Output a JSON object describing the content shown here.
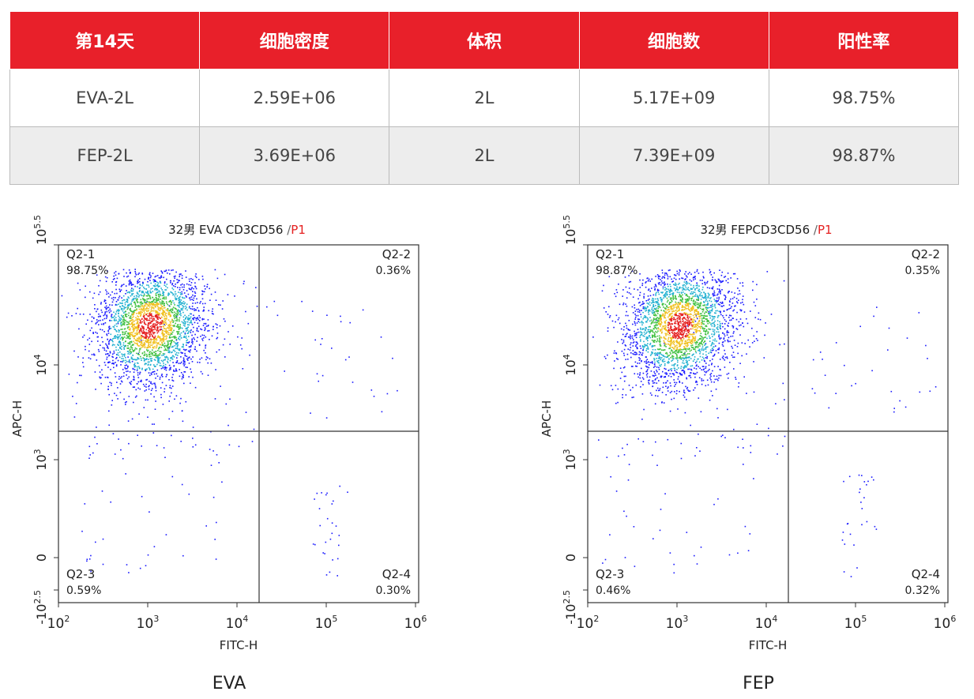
{
  "table": {
    "headers": [
      "第14天",
      "细胞密度",
      "体积",
      "细胞数",
      "阳性率"
    ],
    "rows": [
      [
        "EVA-2L",
        "2.59E+06",
        "2L",
        "5.17E+09",
        "98.75%"
      ],
      [
        "FEP-2L",
        "3.69E+06",
        "2L",
        "7.39E+09",
        "98.87%"
      ]
    ]
  },
  "plots": [
    {
      "title": "32男 EVA CD3CD56",
      "separator": "/",
      "gate": "P1",
      "x_label": "FITC-H",
      "y_label": "APC-H",
      "caption": "EVA",
      "quadrants": [
        {
          "name": "Q2-1",
          "percent": "98.75%"
        },
        {
          "name": "Q2-2",
          "percent": "0.36%"
        },
        {
          "name": "Q2-3",
          "percent": "0.59%"
        },
        {
          "name": "Q2-4",
          "percent": "0.30%"
        }
      ],
      "x_ticks": [
        {
          "base": "10",
          "exp": "2"
        },
        {
          "base": "10",
          "exp": "3"
        },
        {
          "base": "10",
          "exp": "4"
        },
        {
          "base": "10",
          "exp": "5"
        },
        {
          "base": "10",
          "exp": "6"
        }
      ],
      "y_ticks": [
        {
          "base": "10",
          "exp": "5.5"
        },
        {
          "base": "10",
          "exp": "4"
        },
        {
          "base": "10",
          "exp": "3"
        },
        {
          "base": "0"
        },
        {
          "base": "-10",
          "exp": "2.5"
        }
      ]
    },
    {
      "title": "32男 FEPCD3CD56",
      "separator": "/",
      "gate": "P1",
      "x_label": "FITC-H",
      "y_label": "APC-H",
      "caption": "FEP",
      "quadrants": [
        {
          "name": "Q2-1",
          "percent": "98.87%"
        },
        {
          "name": "Q2-2",
          "percent": "0.35%"
        },
        {
          "name": "Q2-3",
          "percent": "0.46%"
        },
        {
          "name": "Q2-4",
          "percent": "0.32%"
        }
      ],
      "x_ticks": [
        {
          "base": "10",
          "exp": "2"
        },
        {
          "base": "10",
          "exp": "3"
        },
        {
          "base": "10",
          "exp": "4"
        },
        {
          "base": "10",
          "exp": "5"
        },
        {
          "base": "10",
          "exp": "6"
        }
      ],
      "y_ticks": [
        {
          "base": "10",
          "exp": "5.5"
        },
        {
          "base": "10",
          "exp": "4"
        },
        {
          "base": "10",
          "exp": "3"
        },
        {
          "base": "0"
        },
        {
          "base": "-10",
          "exp": "2.5"
        }
      ]
    }
  ]
}
